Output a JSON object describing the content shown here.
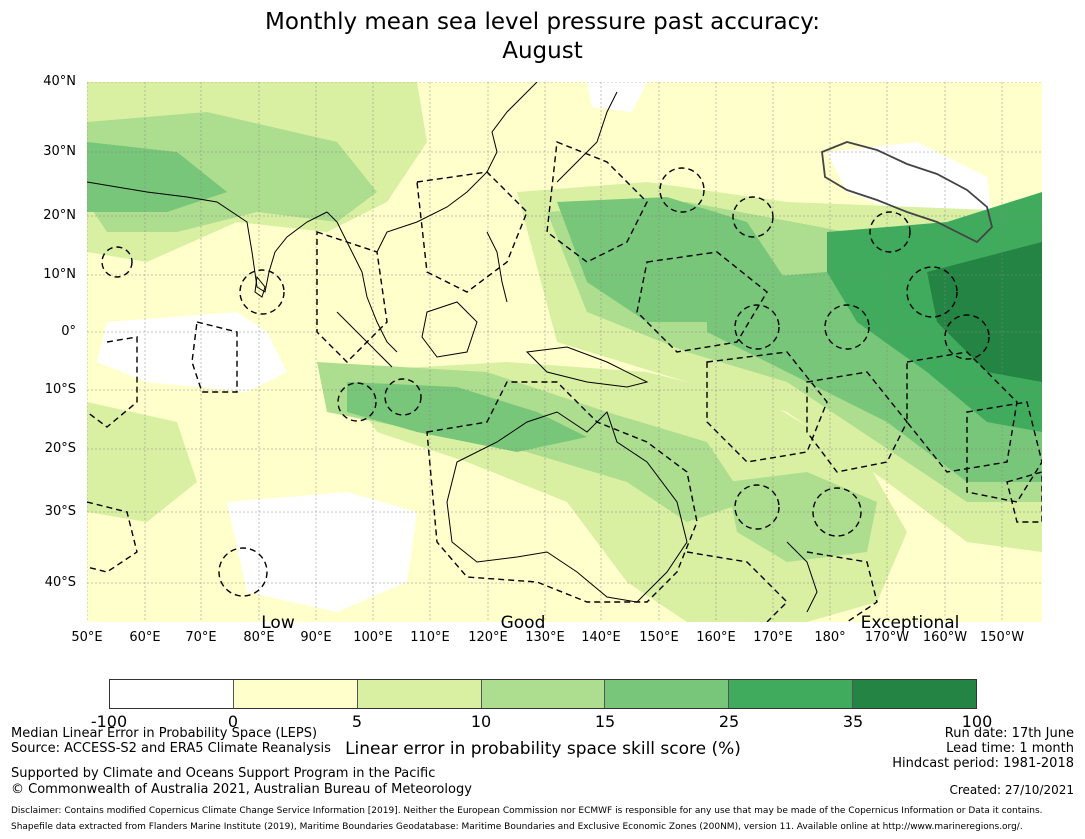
{
  "title": {
    "line1": "Monthly mean sea level pressure past accuracy:",
    "line2": "August"
  },
  "map": {
    "lat_labels": [
      "40°N",
      "30°N",
      "20°N",
      "10°N",
      "0°",
      "10°S",
      "20°S",
      "30°S",
      "40°S"
    ],
    "lon_labels": [
      "50°E",
      "60°E",
      "70°E",
      "80°E",
      "90°E",
      "100°E",
      "110°E",
      "120°E",
      "130°E",
      "140°E",
      "150°E",
      "160°E",
      "170°E",
      "180°",
      "170°W",
      "160°W",
      "150°W"
    ],
    "category_labels": [
      "Low",
      "Good",
      "Exceptional"
    ],
    "colors": {
      "white": "#ffffff",
      "c0": "#ffffcc",
      "c5": "#d9f0a3",
      "c10": "#addd8e",
      "c15": "#78c679",
      "c25": "#41ab5d",
      "c35": "#238443",
      "grid": "#888888",
      "coast": "#000000"
    }
  },
  "colorbar": {
    "ticks": [
      "-100",
      "0",
      "5",
      "10",
      "15",
      "25",
      "35",
      "100"
    ],
    "colors": [
      "#ffffff",
      "#ffffcc",
      "#d9f0a3",
      "#addd8e",
      "#78c679",
      "#41ab5d",
      "#238443"
    ],
    "label": "Linear error in probability space skill score (%)"
  },
  "footer": {
    "left_line1": "Median Linear Error in Probability Space (LEPS)",
    "left_line2": "Source: ACCESS-S2 and ERA5 Climate Reanalysis",
    "left_line3": "Supported by Climate and Oceans Support Program in the Pacific",
    "left_line4": "© Commonwealth of Australia 2021, Australian Bureau of Meteorology",
    "right_line1": "Run date: 17th June",
    "right_line2": "Lead time: 1 month",
    "right_line3": "Hindcast period: 1981-2018",
    "right_line4": "Created: 27/10/2021",
    "disclaimer1": "Disclaimer: Contains modified Copernicus Climate Change Service Information [2019]. Neither the European Commission nor ECMWF is responsible for any use that may be made of the Copernicus Information or Data it contains.",
    "disclaimer2": "Shapefile data extracted from Flanders Marine Institute (2019), Maritime Boundaries Geodatabase: Maritime Boundaries and Exclusive Economic Zones (200NM), version 11. Available online at http://www.marineregions.org/."
  }
}
